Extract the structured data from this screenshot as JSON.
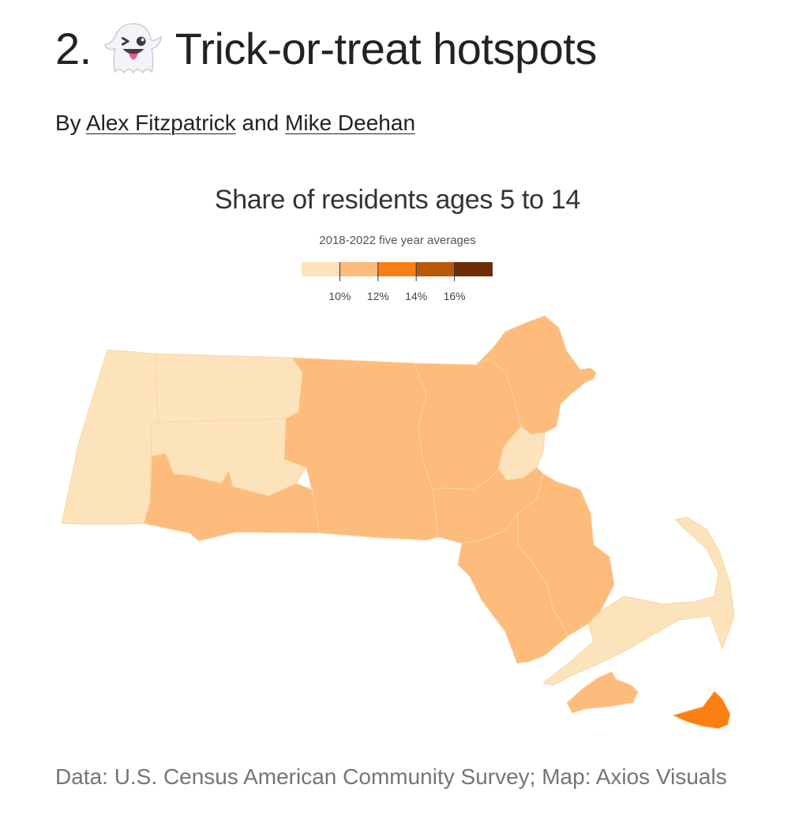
{
  "article": {
    "number": "2.",
    "title": "Trick-or-treat hotspots",
    "byline_prefix": "By",
    "author_1": "Alex Fitzpatrick",
    "byline_joiner": "and",
    "author_2": "Mike Deehan"
  },
  "map": {
    "title": "Share of residents ages 5 to 14",
    "subtitle": "2018-2022 five year averages",
    "legend": {
      "bins": [
        {
          "color": "#fce3bb"
        },
        {
          "color": "#fdbb7c"
        },
        {
          "color": "#fa7f12"
        },
        {
          "color": "#b95807"
        },
        {
          "color": "#6f2d07"
        }
      ],
      "tick_labels": [
        "10%",
        "12%",
        "14%",
        "16%"
      ]
    },
    "regions": [
      {
        "id": "berkshire",
        "bin": 0
      },
      {
        "id": "franklin",
        "bin": 0
      },
      {
        "id": "hampshire",
        "bin": 0
      },
      {
        "id": "hampden",
        "bin": 1
      },
      {
        "id": "worcester",
        "bin": 1
      },
      {
        "id": "middlesex",
        "bin": 1
      },
      {
        "id": "essex",
        "bin": 1
      },
      {
        "id": "suffolk",
        "bin": 0
      },
      {
        "id": "norfolk",
        "bin": 1
      },
      {
        "id": "plymouth",
        "bin": 1
      },
      {
        "id": "bristol",
        "bin": 1
      },
      {
        "id": "barnstable",
        "bin": 0
      },
      {
        "id": "dukes",
        "bin": 1
      },
      {
        "id": "nantucket",
        "bin": 2
      }
    ]
  },
  "source": {
    "text": "Data: U.S. Census American Community Survey; Map: Axios Visuals"
  }
}
